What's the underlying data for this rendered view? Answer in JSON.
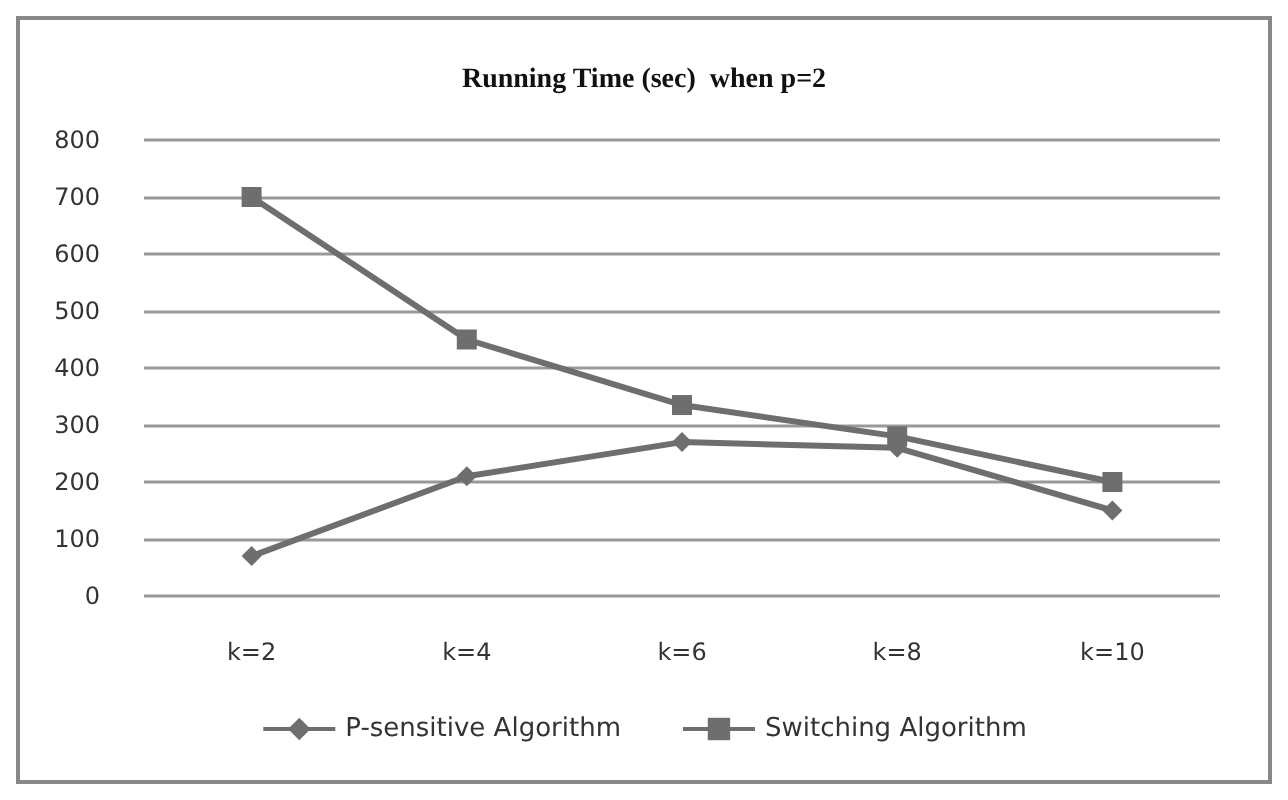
{
  "chart_data": {
    "type": "line",
    "title": "Running Time (sec)  when p=2",
    "categories": [
      "k=2",
      "k=4",
      "k=6",
      "k=8",
      "k=10"
    ],
    "series": [
      {
        "name": "P-sensitive Algorithm",
        "color": "#6e6e6e",
        "marker": "diamond",
        "values": [
          70,
          210,
          270,
          260,
          150
        ]
      },
      {
        "name": "Switching Algorithm",
        "color": "#6e6e6e",
        "marker": "square",
        "values": [
          700,
          450,
          335,
          280,
          200
        ]
      }
    ],
    "ylim": [
      0,
      800
    ],
    "yticks": [
      0,
      100,
      200,
      300,
      400,
      500,
      600,
      700,
      800
    ],
    "grid": "y",
    "legend": "bottom",
    "line_style": "solid"
  }
}
